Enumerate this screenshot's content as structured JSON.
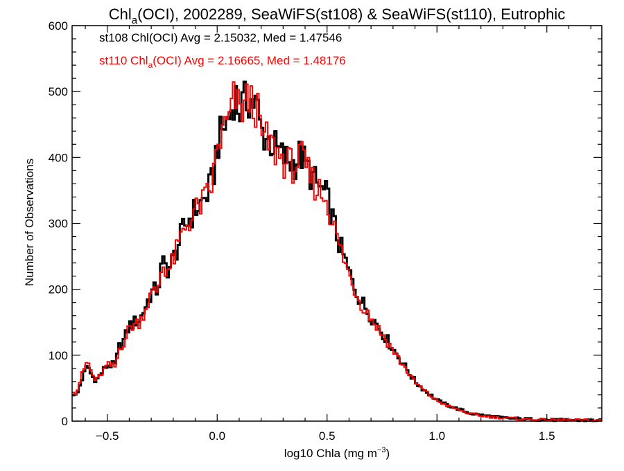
{
  "title": {
    "prefix": "Chl",
    "sub": "a",
    "rest": "(OCI), 2002289, SeaWiFS(st108) & SeaWiFS(st110), Eutrophic"
  },
  "xaxis": {
    "label_main": "log10 Chla (mg m",
    "label_sup": "−3",
    "label_close": ")",
    "ticks": [
      -0.5,
      0.0,
      0.5,
      1.0,
      1.5
    ],
    "tick_labels": [
      "−0.5",
      "0.0",
      "0.5",
      "1.0",
      "1.5"
    ]
  },
  "yaxis": {
    "label": "Number of Observations",
    "ticks": [
      0,
      100,
      200,
      300,
      400,
      500,
      600
    ],
    "tick_labels": [
      "0",
      "100",
      "200",
      "300",
      "400",
      "500",
      "600"
    ]
  },
  "annotations": [
    {
      "pre": "st108 Chl",
      "sub": "",
      "post": " Avg = 2.15032, Med = 1.47546",
      "color": "#000000",
      "full": "st108 Chl(OCI) Avg = 2.15032, Med = 1.47546"
    },
    {
      "pre": "st110 Chl",
      "sub": "a",
      "post": "(OCI) Avg = 2.16665, Med = 1.48176",
      "color": "#ff0000"
    }
  ],
  "colors": {
    "st108": "#000000",
    "st110": "#ff0000",
    "axes": "#000000"
  },
  "chart_data": {
    "type": "histogram",
    "xlim": [
      -0.66,
      1.75
    ],
    "ylim": [
      0,
      600
    ],
    "bin_width": 0.01,
    "grid": false,
    "series": [
      {
        "name": "st108",
        "color": "#000000",
        "anchors": [
          [
            -0.66,
            42
          ],
          [
            -0.64,
            38
          ],
          [
            -0.62,
            60
          ],
          [
            -0.59,
            85
          ],
          [
            -0.57,
            68
          ],
          [
            -0.55,
            62
          ],
          [
            -0.5,
            85
          ],
          [
            -0.46,
            85
          ],
          [
            -0.45,
            110
          ],
          [
            -0.42,
            125
          ],
          [
            -0.4,
            145
          ],
          [
            -0.35,
            155
          ],
          [
            -0.3,
            195
          ],
          [
            -0.27,
            200
          ],
          [
            -0.25,
            240
          ],
          [
            -0.22,
            230
          ],
          [
            -0.2,
            245
          ],
          [
            -0.15,
            295
          ],
          [
            -0.1,
            320
          ],
          [
            -0.05,
            340
          ],
          [
            -0.02,
            365
          ],
          [
            0.0,
            420
          ],
          [
            0.03,
            445
          ],
          [
            0.06,
            465
          ],
          [
            0.08,
            500
          ],
          [
            0.1,
            470
          ],
          [
            0.14,
            490
          ],
          [
            0.18,
            480
          ],
          [
            0.2,
            440
          ],
          [
            0.24,
            425
          ],
          [
            0.3,
            400
          ],
          [
            0.35,
            390
          ],
          [
            0.38,
            405
          ],
          [
            0.4,
            390
          ],
          [
            0.45,
            360
          ],
          [
            0.5,
            340
          ],
          [
            0.55,
            275
          ],
          [
            0.6,
            225
          ],
          [
            0.65,
            185
          ],
          [
            0.7,
            160
          ],
          [
            0.75,
            135
          ],
          [
            0.8,
            110
          ],
          [
            0.85,
            85
          ],
          [
            0.9,
            60
          ],
          [
            0.95,
            45
          ],
          [
            1.0,
            32
          ],
          [
            1.05,
            24
          ],
          [
            1.1,
            18
          ],
          [
            1.15,
            12
          ],
          [
            1.2,
            9
          ],
          [
            1.3,
            5
          ],
          [
            1.4,
            3
          ],
          [
            1.5,
            2
          ],
          [
            1.75,
            1
          ]
        ]
      },
      {
        "name": "st110",
        "color": "#ff0000",
        "anchors": [
          [
            -0.66,
            48
          ],
          [
            -0.64,
            42
          ],
          [
            -0.62,
            66
          ],
          [
            -0.59,
            92
          ],
          [
            -0.57,
            72
          ],
          [
            -0.55,
            60
          ],
          [
            -0.5,
            85
          ],
          [
            -0.46,
            82
          ],
          [
            -0.45,
            108
          ],
          [
            -0.42,
            122
          ],
          [
            -0.4,
            142
          ],
          [
            -0.35,
            152
          ],
          [
            -0.3,
            192
          ],
          [
            -0.27,
            198
          ],
          [
            -0.25,
            238
          ],
          [
            -0.22,
            228
          ],
          [
            -0.2,
            243
          ],
          [
            -0.15,
            292
          ],
          [
            -0.1,
            318
          ],
          [
            -0.05,
            338
          ],
          [
            -0.02,
            362
          ],
          [
            0.0,
            415
          ],
          [
            0.03,
            440
          ],
          [
            0.06,
            462
          ],
          [
            0.08,
            495
          ],
          [
            0.1,
            468
          ],
          [
            0.14,
            488
          ],
          [
            0.18,
            476
          ],
          [
            0.2,
            435
          ],
          [
            0.24,
            420
          ],
          [
            0.3,
            396
          ],
          [
            0.35,
            386
          ],
          [
            0.38,
            400
          ],
          [
            0.4,
            385
          ],
          [
            0.45,
            356
          ],
          [
            0.5,
            336
          ],
          [
            0.55,
            272
          ],
          [
            0.6,
            222
          ],
          [
            0.65,
            182
          ],
          [
            0.7,
            157
          ],
          [
            0.75,
            132
          ],
          [
            0.8,
            108
          ],
          [
            0.85,
            83
          ],
          [
            0.9,
            59
          ],
          [
            0.95,
            44
          ],
          [
            1.0,
            31
          ],
          [
            1.05,
            23
          ],
          [
            1.1,
            17
          ],
          [
            1.15,
            11
          ],
          [
            1.2,
            8
          ],
          [
            1.3,
            5
          ],
          [
            1.4,
            3
          ],
          [
            1.5,
            2
          ],
          [
            1.75,
            1
          ]
        ]
      }
    ]
  }
}
